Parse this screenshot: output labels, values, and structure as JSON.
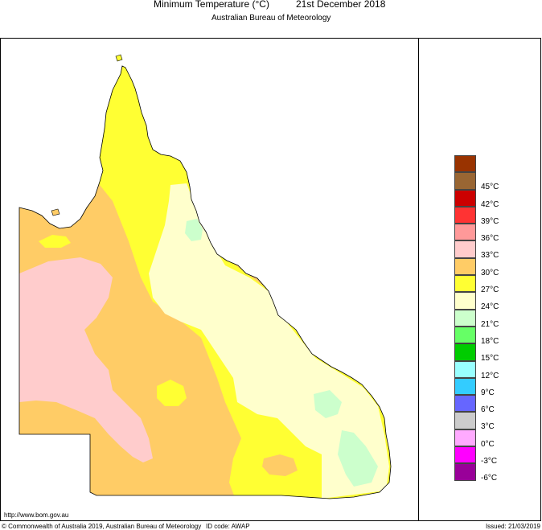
{
  "title": {
    "main": "Minimum Temperature (°C)",
    "date": "21st December 2018",
    "agency": "Australian Bureau of Meteorology"
  },
  "legend": {
    "items": [
      {
        "label": "",
        "color": "#993300"
      },
      {
        "label": "45°C",
        "color": "#996633"
      },
      {
        "label": "42°C",
        "color": "#cc0000"
      },
      {
        "label": "39°C",
        "color": "#ff3333"
      },
      {
        "label": "36°C",
        "color": "#ff9999"
      },
      {
        "label": "33°C",
        "color": "#ffcccc"
      },
      {
        "label": "30°C",
        "color": "#ffcc66"
      },
      {
        "label": "27°C",
        "color": "#ffff33"
      },
      {
        "label": "24°C",
        "color": "#ffffcc"
      },
      {
        "label": "21°C",
        "color": "#ccffcc"
      },
      {
        "label": "18°C",
        "color": "#66ff66"
      },
      {
        "label": "15°C",
        "color": "#00cc00"
      },
      {
        "label": "12°C",
        "color": "#99ffff"
      },
      {
        "label": "9°C",
        "color": "#33ccff"
      },
      {
        "label": "6°C",
        "color": "#6666ff"
      },
      {
        "label": "3°C",
        "color": "#cccccc"
      },
      {
        "label": "0°C",
        "color": "#ffaaff"
      },
      {
        "label": "-3°C",
        "color": "#ff00ff"
      },
      {
        "label": "-6°C",
        "color": "#990099"
      }
    ]
  },
  "map": {
    "region": "Queensland",
    "zones": [
      {
        "id": "zone-30-33",
        "color": "#ffcc66"
      },
      {
        "id": "zone-33-36",
        "color": "#ffcccc"
      },
      {
        "id": "zone-27-30",
        "color": "#ffff33"
      },
      {
        "id": "zone-24-27",
        "color": "#ffffcc"
      },
      {
        "id": "zone-21-24",
        "color": "#ccffcc"
      }
    ]
  },
  "footer": {
    "url": "http://www.bom.gov.au",
    "copyright": "© Commonwealth of Australia 2019, Australian Bureau of Meteorology",
    "id_code": "ID code: AWAP",
    "issued": "Issued: 21/03/2019"
  }
}
